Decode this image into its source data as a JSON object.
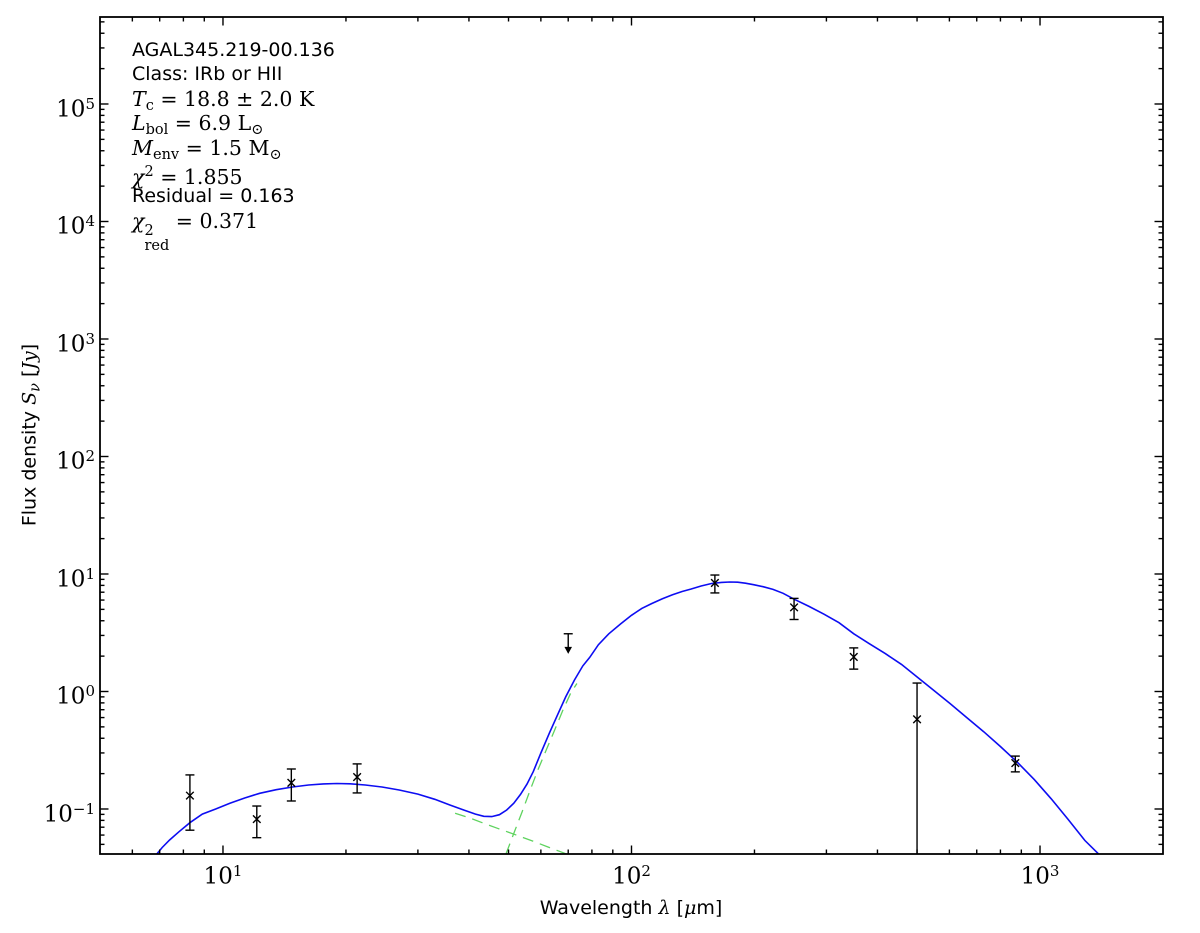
{
  "figure": {
    "background": "#ffffff",
    "colors": {
      "model": "#0d0df2",
      "components": "#5fd35f",
      "data": "#000000",
      "frame": "#000000"
    },
    "annotation": {
      "lines": [
        {
          "font": "sans",
          "parts": [
            {
              "n": "AGAL345.219-00.136"
            }
          ]
        },
        {
          "font": "sans",
          "parts": [
            {
              "n": "Class: IRb or HII"
            }
          ]
        },
        {
          "font": "math",
          "parts": [
            {
              "i": "T"
            },
            {
              "sub": "c"
            },
            {
              "n": " = 18.8 ± 2.0 K"
            }
          ]
        },
        {
          "font": "math",
          "parts": [
            {
              "i": "L"
            },
            {
              "sub": "bol"
            },
            {
              "n": " = 6.9 L"
            },
            {
              "sub": "⊙"
            }
          ]
        },
        {
          "font": "math",
          "parts": [
            {
              "i": "M"
            },
            {
              "sub": "env"
            },
            {
              "n": " = 1.5 M"
            },
            {
              "sub": "⊙"
            }
          ]
        },
        {
          "font": "math",
          "parts": [
            {
              "i": "χ"
            },
            {
              "sup": "2"
            },
            {
              "n": " = 1.855"
            }
          ]
        },
        {
          "font": "sans",
          "parts": [
            {
              "n": "Residual = 0.163"
            }
          ]
        },
        {
          "font": "math",
          "parts": [
            {
              "i": "χ"
            },
            {
              "stack": {
                "sup": "2",
                "sub": "red"
              }
            },
            {
              "n": " = 0.371"
            }
          ]
        }
      ]
    },
    "axes": {
      "x": {
        "scale": "log",
        "min": 5,
        "max": 2000,
        "label_parts": [
          {
            "n": "Wavelength "
          },
          {
            "mi": "λ"
          },
          {
            "n": " ["
          },
          {
            "mi": "μ"
          },
          {
            "n": "m]"
          }
        ],
        "ticks": [
          {
            "v": 10,
            "e": "1"
          },
          {
            "v": 100,
            "e": "2"
          },
          {
            "v": 1000,
            "e": "3"
          }
        ]
      },
      "y": {
        "scale": "log",
        "min": 0.0414,
        "max": 550000,
        "label_parts": [
          {
            "n": "Flux density "
          },
          {
            "mi": "S"
          },
          {
            "misub": "ν"
          },
          {
            "n": " ["
          },
          {
            "mi": "Jy"
          },
          {
            "n": "]"
          }
        ],
        "ticks": [
          {
            "v": 0.1,
            "e": "−1"
          },
          {
            "v": 1,
            "e": "0"
          },
          {
            "v": 10,
            "e": "1"
          },
          {
            "v": 100,
            "e": "2"
          },
          {
            "v": 1000,
            "e": "3"
          },
          {
            "v": 10000,
            "e": "4"
          },
          {
            "v": 100000,
            "e": "5"
          }
        ]
      }
    }
  },
  "chart_data": {
    "type": "line",
    "title": "AGAL345.219-00.136",
    "xlabel": "Wavelength λ [μm]",
    "ylabel": "Flux density Sν [Jy]",
    "xscale": "log",
    "yscale": "log",
    "xlim": [
      5,
      2000
    ],
    "ylim": [
      0.0414,
      550000
    ],
    "grid": false,
    "legend": "none",
    "series": [
      {
        "name": "model-total",
        "style": "solid",
        "color": "#0d0df2",
        "points": [
          [
            6.85,
            0.0405
          ],
          [
            7.1,
            0.047
          ],
          [
            7.4,
            0.0545
          ],
          [
            7.8,
            0.064
          ],
          [
            8.3,
            0.0765
          ],
          [
            8.9,
            0.0905
          ],
          [
            9.6,
            0.1
          ],
          [
            10.4,
            0.112
          ],
          [
            11.3,
            0.124
          ],
          [
            12.3,
            0.136
          ],
          [
            13.5,
            0.146
          ],
          [
            14.8,
            0.154
          ],
          [
            16.2,
            0.16
          ],
          [
            17.6,
            0.1635
          ],
          [
            19,
            0.1648
          ],
          [
            20.5,
            0.1638
          ],
          [
            22.3,
            0.16
          ],
          [
            24.5,
            0.154
          ],
          [
            27,
            0.145
          ],
          [
            30,
            0.134
          ],
          [
            33,
            0.121
          ],
          [
            36,
            0.108
          ],
          [
            39,
            0.0975
          ],
          [
            41.5,
            0.0905
          ],
          [
            43.5,
            0.0866
          ],
          [
            45.5,
            0.0862
          ],
          [
            47.5,
            0.0895
          ],
          [
            49.5,
            0.098
          ],
          [
            51.5,
            0.112
          ],
          [
            53.5,
            0.133
          ],
          [
            55.5,
            0.163
          ],
          [
            57.5,
            0.208
          ],
          [
            60,
            0.3
          ],
          [
            63,
            0.445
          ],
          [
            66,
            0.64
          ],
          [
            69,
            0.9
          ],
          [
            72.5,
            1.25
          ],
          [
            76,
            1.65
          ],
          [
            79,
            1.95
          ],
          [
            83,
            2.5
          ],
          [
            88,
            3.1
          ],
          [
            94,
            3.75
          ],
          [
            100,
            4.45
          ],
          [
            106,
            5.1
          ],
          [
            112,
            5.6
          ],
          [
            119,
            6.15
          ],
          [
            126,
            6.65
          ],
          [
            133,
            7.1
          ],
          [
            140,
            7.45
          ],
          [
            148,
            7.9
          ],
          [
            157,
            8.3
          ],
          [
            166,
            8.48
          ],
          [
            174,
            8.55
          ],
          [
            182,
            8.52
          ],
          [
            190,
            8.35
          ],
          [
            199,
            8.1
          ],
          [
            210,
            7.8
          ],
          [
            222,
            7.4
          ],
          [
            235,
            6.85
          ],
          [
            250,
            6.1
          ],
          [
            272,
            5.3
          ],
          [
            296,
            4.55
          ],
          [
            322,
            3.85
          ],
          [
            350,
            3.1
          ],
          [
            382,
            2.55
          ],
          [
            418,
            2.1
          ],
          [
            458,
            1.7
          ],
          [
            500,
            1.33
          ],
          [
            548,
            1.03
          ],
          [
            602,
            0.79
          ],
          [
            662,
            0.6
          ],
          [
            728,
            0.455
          ],
          [
            800,
            0.34
          ],
          [
            880,
            0.25
          ],
          [
            968,
            0.178
          ],
          [
            1065,
            0.122
          ],
          [
            1170,
            0.082
          ],
          [
            1287,
            0.054
          ],
          [
            1400,
            0.0405
          ]
        ]
      },
      {
        "name": "warm-component",
        "style": "dashed",
        "color": "#5fd35f",
        "points": [
          [
            37,
            0.092
          ],
          [
            40,
            0.0845
          ],
          [
            43.5,
            0.0755
          ],
          [
            47,
            0.0685
          ],
          [
            50,
            0.0635
          ],
          [
            54,
            0.0575
          ],
          [
            58,
            0.0525
          ],
          [
            62,
            0.048
          ],
          [
            66,
            0.0442
          ],
          [
            70.5,
            0.0405
          ]
        ]
      },
      {
        "name": "cold-component",
        "style": "dashed",
        "color": "#5fd35f",
        "points": [
          [
            49.3,
            0.0415
          ],
          [
            51.5,
            0.062
          ],
          [
            54,
            0.095
          ],
          [
            56.5,
            0.145
          ],
          [
            59,
            0.215
          ],
          [
            62,
            0.325
          ],
          [
            65,
            0.48
          ],
          [
            68,
            0.7
          ],
          [
            71,
            0.97
          ],
          [
            73.5,
            1.17
          ]
        ]
      }
    ],
    "data_points": [
      {
        "lam": 8.3,
        "flux": 0.13,
        "err_lo": 0.066,
        "err_hi": 0.195,
        "cap_lo": true
      },
      {
        "lam": 12.1,
        "flux": 0.082,
        "err_lo": 0.057,
        "err_hi": 0.106,
        "cap_lo": true
      },
      {
        "lam": 14.7,
        "flux": 0.167,
        "err_lo": 0.117,
        "err_hi": 0.219,
        "cap_lo": true
      },
      {
        "lam": 21.3,
        "flux": 0.187,
        "err_lo": 0.137,
        "err_hi": 0.242,
        "cap_lo": true
      },
      {
        "lam": 160,
        "flux": 8.4,
        "err_lo": 6.9,
        "err_hi": 9.8,
        "cap_lo": true
      },
      {
        "lam": 250,
        "flux": 5.2,
        "err_lo": 4.1,
        "err_hi": 6.2,
        "cap_lo": true
      },
      {
        "lam": 350,
        "flux": 1.97,
        "err_lo": 1.55,
        "err_hi": 2.35,
        "cap_lo": true
      },
      {
        "lam": 500,
        "flux": 0.58,
        "err_lo": 0.0414,
        "err_hi": 1.18,
        "cap_lo": false
      },
      {
        "lam": 870,
        "flux": 0.246,
        "err_lo": 0.207,
        "err_hi": 0.282,
        "cap_lo": true
      }
    ],
    "upper_limits": [
      {
        "lam": 70,
        "flux": 3.1,
        "arrow_flux": 2.35
      }
    ]
  }
}
